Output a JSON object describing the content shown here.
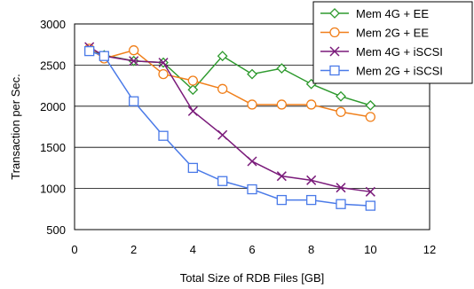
{
  "chart_data": {
    "type": "line",
    "title": "",
    "xlabel": "Total Size of RDB Files [GB]",
    "ylabel": "Transaction per Sec.",
    "xlim": [
      0,
      12
    ],
    "ylim": [
      500,
      3000
    ],
    "xticks": [
      "0",
      "2",
      "4",
      "6",
      "8",
      "10",
      "12"
    ],
    "yticks": [
      "500",
      "1000",
      "1500",
      "2000",
      "2500",
      "3000"
    ],
    "grid": "horizontal",
    "legend_position": "top-right",
    "series": [
      {
        "name": "Mem 4G + EE",
        "color": "#2e9a2e",
        "marker": "diamond",
        "x": [
          0.5,
          1,
          2,
          3,
          4,
          5,
          6,
          7,
          8,
          9,
          10
        ],
        "values": [
          2680,
          2620,
          2550,
          2530,
          2200,
          2610,
          2390,
          2460,
          2270,
          2120,
          2010
        ]
      },
      {
        "name": "Mem 2G + EE",
        "color": "#f07f1a",
        "marker": "circle",
        "x": [
          0.5,
          1,
          2,
          3,
          4,
          5,
          6,
          7,
          8,
          9,
          10
        ],
        "values": [
          2700,
          2580,
          2680,
          2390,
          2310,
          2210,
          2020,
          2020,
          2020,
          1930,
          1870
        ]
      },
      {
        "name": "Mem 4G + iSCSI",
        "color": "#7a1a7a",
        "marker": "x",
        "x": [
          0.5,
          1,
          2,
          3,
          4,
          5,
          6,
          7,
          8,
          9,
          10
        ],
        "values": [
          2720,
          2610,
          2550,
          2530,
          1940,
          1650,
          1330,
          1150,
          1100,
          1010,
          960
        ]
      },
      {
        "name": "Mem 2G + iSCSI",
        "color": "#4a7ae8",
        "marker": "square",
        "x": [
          0.5,
          1,
          2,
          3,
          4,
          5,
          6,
          7,
          8,
          9,
          10
        ],
        "values": [
          2670,
          2610,
          2060,
          1640,
          1250,
          1090,
          990,
          860,
          860,
          810,
          790
        ]
      }
    ]
  }
}
